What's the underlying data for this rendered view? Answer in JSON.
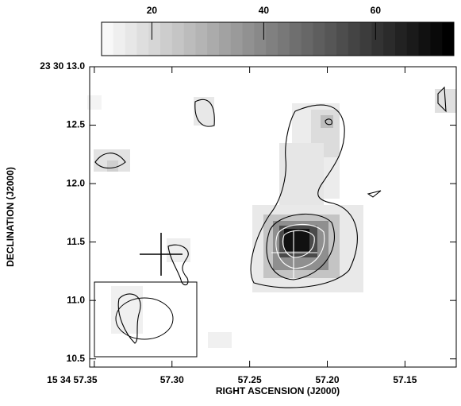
{
  "chart_data": {
    "type": "image",
    "xlabel": "RIGHT ASCENSION (J2000)",
    "ylabel": "DECLINATION (J2000)",
    "xlim": [
      57.353,
      57.117
    ],
    "xticks": [
      {
        "value": 57.35,
        "label": "15 34 57.35"
      },
      {
        "value": 57.3,
        "label": "57.30"
      },
      57.25,
      {
        "value": 57.2,
        "label": "57.20"
      },
      57.15
    ],
    "ylim": [
      10.43,
      13.0
    ],
    "yticks": [
      10.5,
      {
        "value": 11.0,
        "label": "11.0"
      },
      11.5,
      {
        "value": 12.0,
        "label": "12.0"
      },
      12.5,
      {
        "value": 13.0,
        "label": "23 30 13.0"
      }
    ],
    "colorbar_lim": [
      11,
      74
    ],
    "colorbar_ticks": [
      20,
      40,
      60
    ]
  }
}
